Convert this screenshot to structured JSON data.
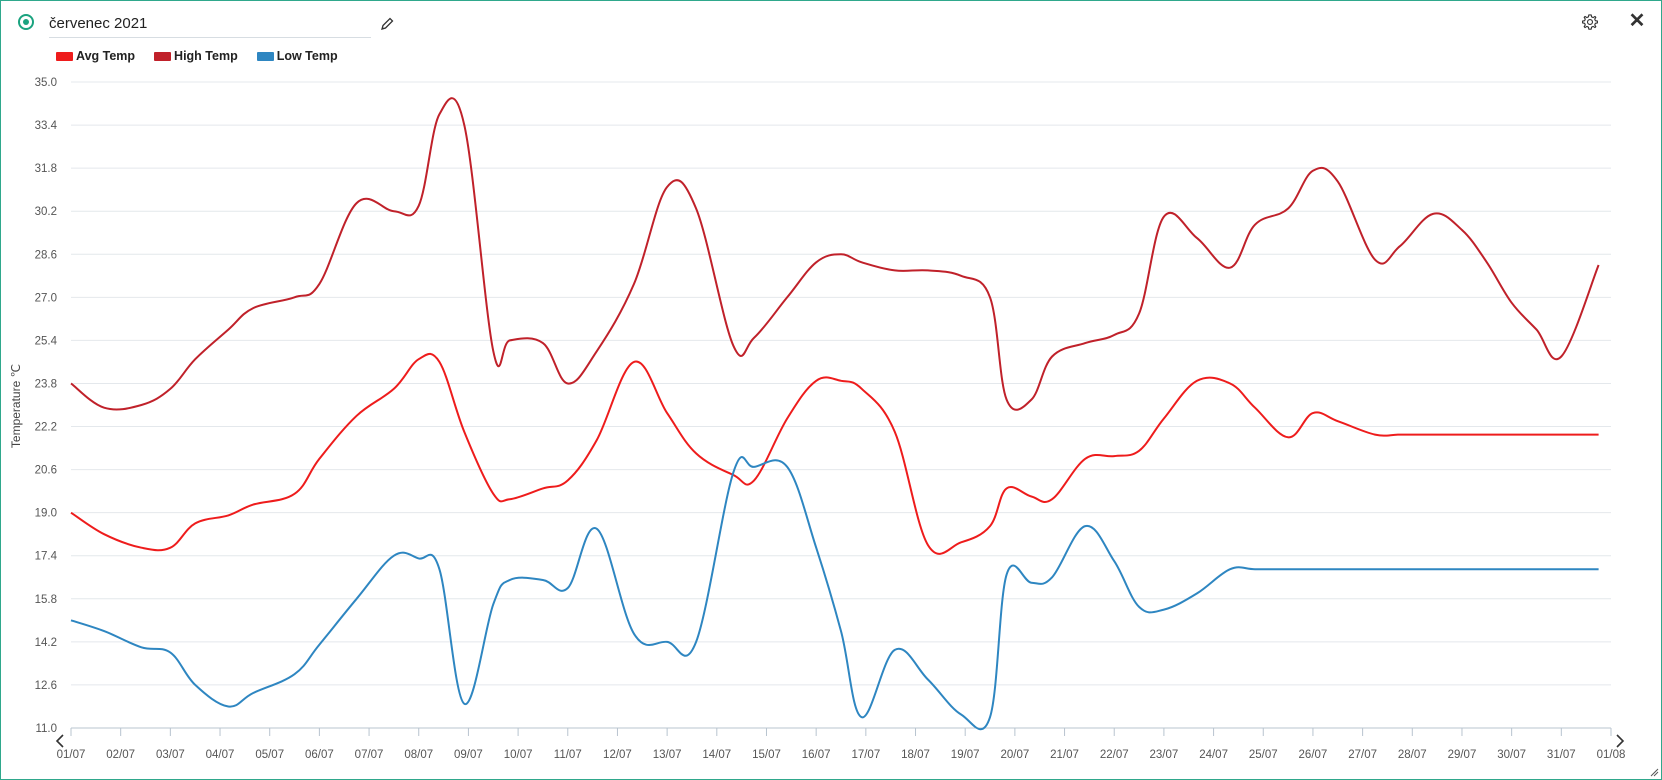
{
  "header": {
    "title": "červenec 2021",
    "icons": {
      "edit": "pencil-icon",
      "settings": "gear-icon",
      "close": "close-icon"
    },
    "accent_color": "#1aa37f"
  },
  "legend": [
    {
      "label": "Avg Temp",
      "color": "#ee1c1c"
    },
    {
      "label": "High Temp",
      "color": "#c0212a"
    },
    {
      "label": "Low Temp",
      "color": "#2e86c1"
    }
  ],
  "chart_data": {
    "type": "line",
    "ylabel": "Temperature ℃",
    "xlabel": "",
    "ylim": [
      11.0,
      35.0
    ],
    "yticks": [
      "35.0",
      "33.4",
      "31.8",
      "30.2",
      "28.6",
      "27.0",
      "25.4",
      "23.8",
      "22.2",
      "20.6",
      "19.0",
      "17.4",
      "15.8",
      "14.2",
      "12.6",
      "11.0"
    ],
    "x_ticks": [
      "01/07",
      "02/07",
      "03/07",
      "04/07",
      "05/07",
      "06/07",
      "07/07",
      "08/07",
      "09/07",
      "10/07",
      "11/07",
      "12/07",
      "13/07",
      "14/07",
      "15/07",
      "16/07",
      "17/07",
      "18/07",
      "19/07",
      "20/07",
      "21/07",
      "22/07",
      "23/07",
      "24/07",
      "25/07",
      "26/07",
      "27/07",
      "28/07",
      "29/07",
      "30/07",
      "31/07",
      "01/08"
    ],
    "x": [
      "01/07 00:00",
      "01/07 16:00",
      "02/07 10:00",
      "03/07 00:00",
      "03/07 12:00",
      "04/07 04:00",
      "04/07 16:00",
      "05/07 12:00",
      "06/07 00:00",
      "06/07 18:00",
      "07/07 12:00",
      "08/07 00:00",
      "08/07 10:00",
      "08/07 22:00",
      "09/07 12:00",
      "09/07 20:00",
      "10/07 12:00",
      "11/07 00:00",
      "11/07 14:00",
      "12/07 08:00",
      "13/07 00:00",
      "13/07 14:00",
      "14/07 08:00",
      "14/07 18:00",
      "15/07 10:00",
      "16/07 00:00",
      "16/07 12:00",
      "16/07 22:00",
      "17/07 14:00",
      "18/07 06:00",
      "18/07 22:00",
      "19/07 12:00",
      "19/07 20:00",
      "20/07 08:00",
      "20/07 18:00",
      "21/07 10:00",
      "22/07 00:00",
      "22/07 12:00",
      "23/07 00:00",
      "23/07 16:00",
      "24/07 08:00",
      "24/07 20:00",
      "25/07 12:00",
      "26/07 00:00",
      "26/07 12:00",
      "27/07 06:00",
      "27/07 18:00",
      "28/07 10:00",
      "29/07 00:00",
      "29/07 12:00",
      "30/07 00:00",
      "30/07 12:00",
      "31/07 00:00",
      "31/07 18:00"
    ],
    "series": [
      {
        "name": "High Temp",
        "color": "#c0212a",
        "values": [
          23.8,
          22.9,
          23.0,
          23.6,
          24.7,
          25.8,
          26.6,
          27.0,
          27.5,
          30.5,
          30.2,
          30.4,
          33.8,
          33.4,
          25.0,
          25.4,
          25.3,
          23.8,
          25.0,
          27.5,
          31.1,
          30.3,
          25.2,
          25.5,
          27.0,
          28.3,
          28.6,
          28.3,
          28.0,
          28.0,
          27.8,
          27.0,
          23.2,
          23.2,
          24.8,
          25.3,
          25.6,
          26.4,
          30.0,
          29.2,
          28.1,
          29.7,
          30.3,
          31.7,
          31.3,
          28.4,
          28.9,
          30.1,
          29.5,
          28.3,
          26.8,
          25.8,
          24.8,
          28.2
        ],
        "note": ""
      },
      {
        "name": "Avg Temp",
        "color": "#ee1c1c",
        "values": [
          19.0,
          18.2,
          17.7,
          17.7,
          18.6,
          18.9,
          19.3,
          19.7,
          21.0,
          22.6,
          23.6,
          24.7,
          24.6,
          22.0,
          19.7,
          19.5,
          19.9,
          20.2,
          21.7,
          24.6,
          22.7,
          21.2,
          20.4,
          20.2,
          22.5,
          23.9,
          23.9,
          23.6,
          22.0,
          17.8,
          17.9,
          18.5,
          19.9,
          19.6,
          19.5,
          21.0,
          21.1,
          21.3,
          22.5,
          23.9,
          23.8,
          22.9,
          21.8,
          22.7,
          22.4,
          21.9,
          21.9,
          21.9,
          21.9,
          21.9,
          21.9,
          21.9,
          21.9,
          21.9
        ]
      },
      {
        "name": "Low Temp",
        "color": "#2e86c1",
        "values": [
          15.0,
          14.6,
          14.0,
          13.8,
          12.6,
          11.8,
          12.3,
          13.0,
          14.1,
          15.8,
          17.4,
          17.3,
          16.9,
          11.9,
          15.6,
          16.5,
          16.5,
          16.2,
          18.4,
          14.5,
          14.2,
          14.2,
          20.5,
          20.7,
          20.7,
          17.7,
          14.6,
          11.4,
          13.9,
          12.8,
          11.5,
          11.4,
          16.7,
          16.4,
          16.6,
          18.5,
          17.2,
          15.5,
          15.4,
          16.0,
          16.9,
          16.9,
          16.9,
          16.9,
          16.9,
          16.9,
          16.9,
          16.9,
          16.9,
          16.9,
          16.9,
          16.9,
          16.9,
          16.9
        ]
      }
    ],
    "grid": true,
    "legend_position": "top-left"
  }
}
